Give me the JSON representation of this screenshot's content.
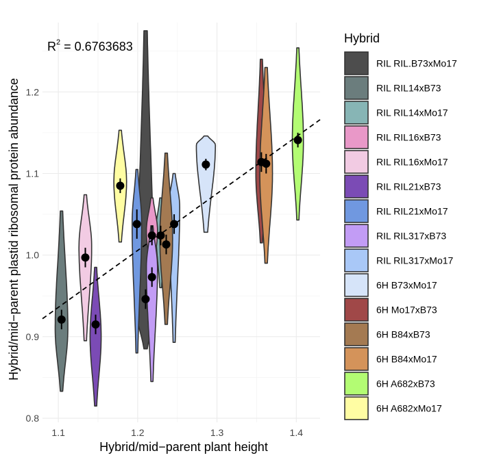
{
  "chart_data": {
    "type": "violin",
    "xlabel": "Hybrid/mid−parent plant height",
    "ylabel": "Hybrid/mid−parent plastid ribosomal protein abundance",
    "xlim": [
      1.08,
      1.43
    ],
    "ylim": [
      0.795,
      1.285
    ],
    "x_ticks": [
      1.1,
      1.2,
      1.3,
      1.4
    ],
    "x_tick_labels": [
      "1.1",
      "1.2",
      "1.3",
      "1.4"
    ],
    "y_ticks": [
      0.8,
      0.9,
      1.0,
      1.1,
      1.2
    ],
    "y_tick_labels": [
      "0.8",
      "0.9",
      "1.0",
      "1.1",
      "1.2"
    ],
    "grid": true,
    "annotation": {
      "base": "R",
      "sup": "2",
      "rest": " = 0.6763683"
    },
    "regression_line": {
      "x": [
        1.08,
        1.43
      ],
      "y": [
        0.922,
        1.166
      ],
      "style": "dashed"
    },
    "legend": {
      "title": "Hybrid",
      "position": "right"
    },
    "series": [
      {
        "name": "RIL RIL.B73xMo17",
        "color": "#4d4d4d",
        "x": 1.21,
        "mean": 0.946,
        "se": 0.012,
        "ymin": 0.885,
        "ymax": 1.275,
        "ymode": 0.93,
        "halfwidth": 0.011
      },
      {
        "name": "RIL RIL14xB73",
        "color": "#6b7d7d",
        "x": 1.104,
        "mean": 0.921,
        "se": 0.012,
        "ymin": 0.833,
        "ymax": 1.054,
        "ymode": 0.91,
        "halfwidth": 0.008
      },
      {
        "name": "RIL RIL14xMo17",
        "color": "#87b5b5",
        "x": 1.229,
        "mean": 1.024,
        "se": 0.012,
        "ymin": 0.96,
        "ymax": 1.07,
        "ymode": 1.03,
        "halfwidth": 0.006
      },
      {
        "name": "RIL RIL16xB73",
        "color": "#e998c8",
        "x": 1.218,
        "mean": 1.024,
        "se": 0.012,
        "ymin": 0.975,
        "ymax": 1.07,
        "ymode": 1.03,
        "halfwidth": 0.007
      },
      {
        "name": "RIL RIL16xMo17",
        "color": "#f2cbe3",
        "x": 1.134,
        "mean": 0.997,
        "se": 0.012,
        "ymin": 0.895,
        "ymax": 1.074,
        "ymode": 1.01,
        "halfwidth": 0.008
      },
      {
        "name": "RIL RIL21xB73",
        "color": "#7b4bb5",
        "x": 1.147,
        "mean": 0.915,
        "se": 0.012,
        "ymin": 0.815,
        "ymax": 0.985,
        "ymode": 0.9,
        "halfwidth": 0.007
      },
      {
        "name": "RIL RIL21xMo17",
        "color": "#7098e0",
        "x": 1.199,
        "mean": 1.038,
        "se": 0.018,
        "ymin": 0.88,
        "ymax": 1.105,
        "ymode": 1.04,
        "halfwidth": 0.006
      },
      {
        "name": "RIL RIL317xB73",
        "color": "#c29cf5",
        "x": 1.218,
        "mean": 0.973,
        "se": 0.012,
        "ymin": 0.845,
        "ymax": 1.036,
        "ymode": 0.985,
        "halfwidth": 0.007
      },
      {
        "name": "RIL RIL317xMo17",
        "color": "#a9c8f7",
        "x": 1.246,
        "mean": 1.038,
        "se": 0.012,
        "ymin": 0.893,
        "ymax": 1.1,
        "ymode": 1.06,
        "halfwidth": 0.007
      },
      {
        "name": "6H B73xMo17",
        "color": "#d6e4f9",
        "x": 1.286,
        "mean": 1.111,
        "se": 0.007,
        "ymin": 1.028,
        "ymax": 1.146,
        "ymode": 1.135,
        "halfwidth": 0.012
      },
      {
        "name": "6H Mo17xB73",
        "color": "#a04848",
        "x": 1.356,
        "mean": 1.114,
        "se": 0.012,
        "ymin": 1.015,
        "ymax": 1.24,
        "ymode": 1.1,
        "halfwidth": 0.007
      },
      {
        "name": "6H B84xB73",
        "color": "#a47a52",
        "x": 1.236,
        "mean": 1.013,
        "se": 0.012,
        "ymin": 0.915,
        "ymax": 1.125,
        "ymode": 1.02,
        "halfwidth": 0.008
      },
      {
        "name": "6H B84xMo17",
        "color": "#d4935a",
        "x": 1.362,
        "mean": 1.112,
        "se": 0.012,
        "ymin": 0.99,
        "ymax": 1.23,
        "ymode": 1.1,
        "halfwidth": 0.008
      },
      {
        "name": "6H A682xB73",
        "color": "#b3fc73",
        "x": 1.402,
        "mean": 1.141,
        "se": 0.009,
        "ymin": 1.043,
        "ymax": 1.254,
        "ymode": 1.14,
        "halfwidth": 0.007
      },
      {
        "name": "6H A682xMo17",
        "color": "#fffda3",
        "x": 1.178,
        "mean": 1.085,
        "se": 0.009,
        "ymin": 1.016,
        "ymax": 1.153,
        "ymode": 1.09,
        "halfwidth": 0.008
      }
    ]
  }
}
